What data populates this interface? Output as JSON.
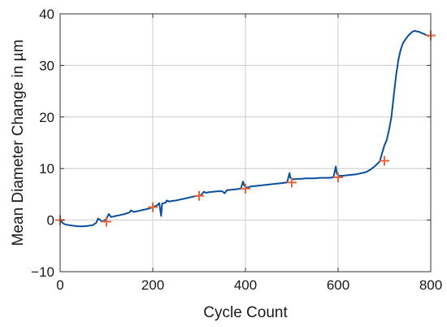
{
  "chart_data": {
    "type": "line",
    "title": "",
    "xlabel": "Cycle Count",
    "ylabel": "Mean Diameter Change in µm",
    "xlim": [
      0,
      800
    ],
    "ylim": [
      -10,
      40
    ],
    "x_ticks": [
      0,
      200,
      400,
      600,
      800
    ],
    "y_ticks": [
      -10,
      0,
      10,
      20,
      30,
      40
    ],
    "grid": true,
    "colors": {
      "line": "#0b4f9c",
      "markers": "#e8643a",
      "grid": "#cccccc",
      "axis": "#333333"
    },
    "series": [
      {
        "style": "line",
        "x": [
          0,
          5,
          10,
          20,
          30,
          40,
          50,
          60,
          70,
          78,
          82,
          86,
          90,
          95,
          100,
          105,
          110,
          120,
          130,
          140,
          150,
          153,
          156,
          160,
          170,
          180,
          190,
          200,
          205,
          210,
          214,
          216,
          218,
          220,
          228,
          230,
          233,
          236,
          240,
          250,
          260,
          270,
          280,
          290,
          300,
          305,
          310,
          315,
          320,
          330,
          340,
          350,
          355,
          360,
          370,
          380,
          390,
          395,
          397,
          400,
          405,
          410,
          420,
          430,
          440,
          450,
          460,
          470,
          480,
          490,
          495,
          497,
          500,
          505,
          510,
          520,
          530,
          540,
          550,
          560,
          570,
          580,
          590,
          595,
          597,
          600,
          605,
          610,
          620,
          640,
          660,
          670,
          680,
          690,
          695,
          700,
          705,
          710,
          715,
          720,
          725,
          730,
          735,
          740,
          745,
          750,
          755,
          760,
          765,
          770,
          775,
          780,
          785,
          790,
          795
        ],
        "y": [
          0,
          -0.5,
          -0.8,
          -1.0,
          -1.1,
          -1.2,
          -1.2,
          -1.1,
          -1.0,
          -0.5,
          0.3,
          0.1,
          -0.3,
          -0.1,
          0.2,
          1.2,
          0.6,
          0.8,
          1.0,
          1.2,
          1.5,
          1.9,
          1.7,
          1.6,
          1.8,
          2.0,
          2.2,
          2.5,
          2.7,
          2.9,
          3.3,
          2.0,
          0.8,
          3.2,
          3.4,
          3.8,
          3.7,
          3.6,
          3.7,
          3.8,
          4.0,
          4.2,
          4.4,
          4.6,
          4.7,
          4.9,
          5.5,
          5.3,
          5.4,
          5.5,
          5.6,
          5.6,
          5.2,
          5.8,
          5.9,
          6.0,
          6.1,
          7.5,
          6.8,
          6.4,
          6.3,
          6.5,
          6.6,
          6.7,
          6.8,
          6.9,
          7.0,
          7.1,
          7.2,
          7.3,
          9.1,
          8.2,
          8.0,
          7.9,
          8.0,
          8.0,
          8.1,
          8.1,
          8.1,
          8.2,
          8.2,
          8.2,
          8.3,
          10.4,
          9.2,
          8.6,
          8.6,
          8.6,
          8.7,
          8.9,
          9.3,
          9.8,
          10.5,
          11.4,
          13.0,
          14.5,
          15.5,
          17.5,
          20.0,
          24.0,
          28.0,
          31.0,
          33.0,
          34.3,
          35.0,
          35.6,
          36.1,
          36.5,
          36.7,
          36.6,
          36.5,
          36.3,
          36.1,
          35.9,
          35.7
        ]
      },
      {
        "style": "markers",
        "marker": "+",
        "x": [
          0,
          100,
          200,
          300,
          400,
          500,
          600,
          700,
          800
        ],
        "y": [
          0,
          -0.3,
          2.5,
          4.7,
          6.1,
          7.3,
          8.3,
          11.5,
          35.8
        ]
      }
    ]
  }
}
